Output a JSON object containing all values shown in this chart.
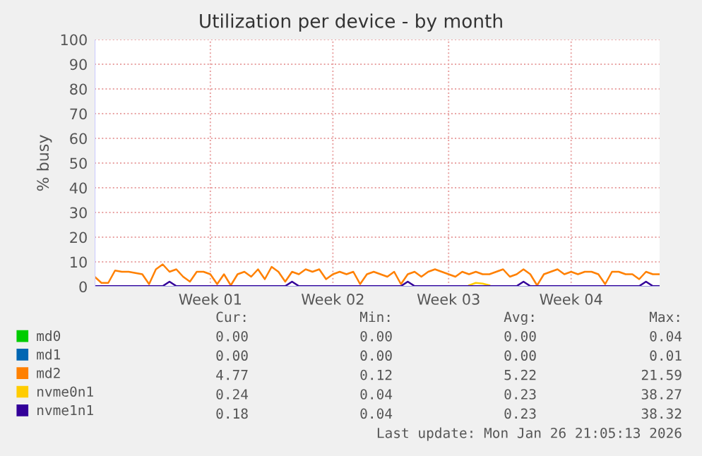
{
  "chart_data": {
    "type": "line",
    "title": "Utilization per device - by month",
    "ylabel": "% busy",
    "categories": [
      null,
      null,
      null,
      null,
      null,
      null,
      null,
      null,
      null,
      null,
      null,
      null,
      null,
      null,
      null,
      null,
      null,
      "Week 01",
      null,
      null,
      null,
      null,
      null,
      null,
      null,
      null,
      null,
      null,
      null,
      null,
      null,
      null,
      null,
      null,
      null,
      "Week 02",
      null,
      null,
      null,
      null,
      null,
      null,
      null,
      null,
      null,
      null,
      null,
      null,
      null,
      null,
      null,
      null,
      "Week 03",
      null,
      null,
      null,
      null,
      null,
      null,
      null,
      null,
      null,
      null,
      null,
      null,
      null,
      null,
      null,
      null,
      null,
      "Week 04",
      null,
      null,
      null,
      null,
      null,
      null,
      null,
      null,
      null,
      null,
      null,
      null,
      null
    ],
    "ylim": [
      0,
      100
    ],
    "yticks": [
      0,
      10,
      20,
      30,
      40,
      50,
      60,
      70,
      80,
      90,
      100
    ],
    "grid": true,
    "legend": "bottom",
    "series": [
      {
        "name": "md0",
        "color": "#00cc00",
        "values": [
          null,
          null,
          null,
          null,
          null,
          null,
          null,
          null,
          null,
          null,
          null,
          null,
          null,
          null,
          null,
          null,
          null,
          null,
          null,
          null,
          null,
          null,
          null,
          null,
          null,
          null,
          null,
          null,
          null,
          null,
          null,
          null,
          null,
          null,
          null,
          null,
          null,
          null,
          null,
          null,
          null,
          null,
          null,
          null,
          null,
          null,
          null,
          null,
          null,
          null,
          null,
          null,
          null,
          null,
          null,
          null,
          null,
          null,
          null,
          null,
          null,
          null,
          null,
          null,
          null,
          null,
          null,
          null,
          null,
          null,
          null,
          null,
          null,
          null,
          null,
          null,
          null,
          null,
          null,
          null,
          null,
          null,
          null,
          null
        ]
      },
      {
        "name": "md1",
        "color": "#0066b3",
        "values": [
          null,
          null,
          null,
          null,
          null,
          null,
          null,
          null,
          null,
          null,
          null,
          null,
          null,
          null,
          null,
          null,
          null,
          null,
          null,
          null,
          null,
          null,
          null,
          null,
          null,
          null,
          null,
          null,
          null,
          null,
          null,
          null,
          null,
          null,
          null,
          null,
          null,
          null,
          null,
          null,
          null,
          null,
          null,
          null,
          null,
          null,
          null,
          null,
          null,
          null,
          null,
          null,
          null,
          null,
          null,
          null,
          null,
          null,
          null,
          null,
          null,
          null,
          null,
          null,
          null,
          null,
          null,
          null,
          null,
          null,
          null,
          null,
          null,
          null,
          null,
          null,
          null,
          null,
          null,
          null,
          null,
          null,
          null,
          null
        ]
      },
      {
        "name": "md2",
        "color": "#ff8000",
        "values": [
          4,
          1.5,
          1.5,
          6.5,
          6,
          6,
          5.5,
          5,
          1,
          7,
          9,
          6,
          7,
          4,
          2,
          6,
          6,
          5,
          1,
          5,
          0.5,
          5,
          6,
          4,
          7,
          3,
          8,
          6,
          2,
          6,
          5,
          7,
          6,
          7,
          3,
          5,
          6,
          5,
          6,
          1,
          5,
          6,
          5,
          4,
          6,
          1,
          5,
          6,
          4,
          6,
          7,
          6,
          5,
          4,
          6,
          5,
          6,
          5,
          5,
          6,
          7,
          4,
          5,
          7,
          5,
          0.5,
          5,
          6,
          7,
          5,
          6,
          5,
          6,
          6,
          5,
          1,
          6,
          6,
          5,
          5,
          3,
          6,
          5,
          5
        ]
      },
      {
        "name": "nvme0n1",
        "color": "#ffcc00",
        "values": [
          null,
          null,
          null,
          null,
          null,
          null,
          null,
          null,
          null,
          null,
          null,
          null,
          null,
          null,
          null,
          null,
          null,
          null,
          null,
          null,
          null,
          null,
          null,
          null,
          null,
          null,
          null,
          null,
          null,
          null,
          null,
          null,
          null,
          null,
          null,
          null,
          null,
          null,
          null,
          null,
          null,
          null,
          null,
          null,
          null,
          null,
          null,
          null,
          null,
          null,
          null,
          null,
          null,
          null,
          null,
          0.5,
          1.5,
          1.2,
          0.5,
          null,
          null,
          null,
          null,
          null,
          null,
          null,
          null,
          null,
          null,
          null,
          null,
          null,
          null,
          null,
          null,
          null,
          null,
          null,
          null,
          null,
          null,
          null,
          null,
          null
        ]
      },
      {
        "name": "nvme1n1",
        "color": "#330099",
        "values": [
          0.2,
          0.2,
          0.2,
          0.2,
          0.2,
          0.2,
          0.2,
          0.2,
          0.2,
          0.2,
          0.2,
          2,
          0.2,
          0.2,
          0.2,
          0.2,
          0.2,
          0.2,
          0.2,
          0.2,
          0.2,
          0.2,
          0.2,
          0.2,
          0.2,
          0.2,
          0.2,
          0.2,
          0.2,
          2,
          0.2,
          0.2,
          0.2,
          0.2,
          0.2,
          0.2,
          0.2,
          0.2,
          0.2,
          0.2,
          0.2,
          0.2,
          0.2,
          0.2,
          0.2,
          0.2,
          2,
          0.2,
          0.2,
          0.2,
          0.2,
          0.2,
          0.2,
          0.2,
          0.2,
          0.2,
          0.2,
          0.2,
          0.2,
          0.2,
          0.2,
          0.2,
          0.2,
          2,
          0.2,
          0.2,
          0.2,
          0.2,
          0.2,
          0.2,
          0.2,
          0.2,
          0.2,
          0.2,
          0.2,
          0.2,
          0.2,
          0.2,
          0.2,
          0.2,
          0.2,
          2,
          0.2,
          0.2
        ]
      }
    ],
    "annotations": [
      "Cur:",
      "Min:",
      "Avg:",
      "Max:",
      "0.00",
      "0.00",
      "0.00",
      "0.04",
      "0.00",
      "0.00",
      "0.00",
      "0.01",
      "4.77",
      "0.12",
      "5.22",
      "21.59",
      "0.24",
      "0.04",
      "0.23",
      "38.27",
      "0.18",
      "0.04",
      "0.23",
      "38.32",
      "Last update: Mon Jan 26 21:05:13 2026"
    ]
  }
}
